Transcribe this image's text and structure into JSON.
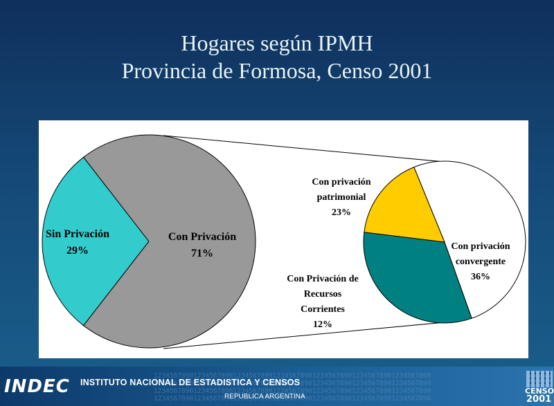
{
  "title": {
    "line1": "Hogares según IPMH",
    "line2": "Provincia de Formosa, Censo 2001"
  },
  "colors": {
    "background": "#154a78",
    "sin_privacion": "#33cccc",
    "con_privacion": "#999999",
    "patrimonial": "#008080",
    "recursos_corrientes": "#ffcc00",
    "convergente": "#ffffff"
  },
  "chart_data": [
    {
      "type": "pie",
      "slices": [
        {
          "label": "Sin Privación",
          "value": 29,
          "display": "29%"
        },
        {
          "label": "Con Privación",
          "value": 71,
          "display": "71%"
        }
      ]
    },
    {
      "type": "pie",
      "note_exploded_from": "Con Privación",
      "slices": [
        {
          "label": "Con privación patrimonial",
          "value": 23,
          "display": "23%"
        },
        {
          "label": "Con Privación de Recursos Corrientes",
          "value": 12,
          "display": "12%"
        },
        {
          "label": "Con privación convergente",
          "value": 36,
          "display": "36%"
        }
      ]
    }
  ],
  "labels": {
    "sin_privacion": {
      "name": "Sin Privación",
      "pct": "29%"
    },
    "con_privacion": {
      "name": "Con Privación",
      "pct": "71%"
    },
    "patrimonial": {
      "line1": "Con privación",
      "line2": "patrimonial",
      "pct": "23%"
    },
    "recursos": {
      "line1": "Con Privación de",
      "line2": "Recursos",
      "line3": "Corrientes",
      "pct": "12%"
    },
    "convergente": {
      "line1": "Con privación",
      "line2": "convergente",
      "pct": "36%"
    }
  },
  "footer": {
    "logo_text": "INDEC",
    "institution": "INSTITUTO NACIONAL DE ESTADISTICA Y CENSOS",
    "country": "REPUBLICA ARGENTINA",
    "digits": "1234567890123456789012345678901234567890123456789012345678901234567890",
    "census_word": "CENSO",
    "census_year": "2001"
  }
}
